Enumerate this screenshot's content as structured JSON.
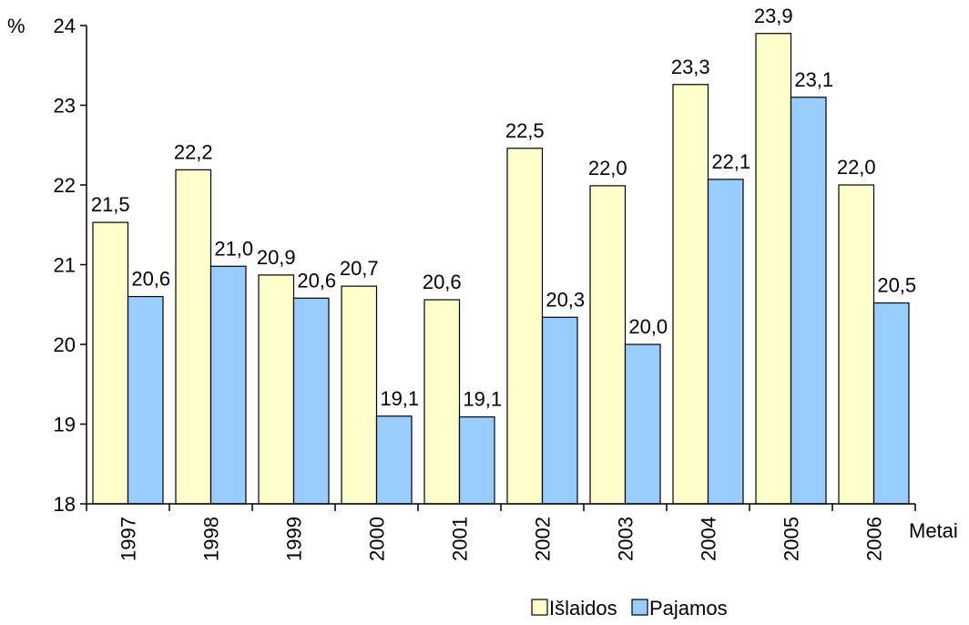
{
  "chart_data": {
    "type": "bar",
    "categories": [
      "1997",
      "1998",
      "1999",
      "2000",
      "2001",
      "2002",
      "2003",
      "2004",
      "2005",
      "2006"
    ],
    "series": [
      {
        "name": "Išlaidos",
        "values": [
          21.53,
          22.19,
          20.87,
          20.73,
          20.56,
          22.46,
          21.99,
          23.26,
          23.9,
          22.0
        ],
        "labels": [
          "21,5",
          "22,2",
          "20,9",
          "20,7",
          "20,6",
          "22,5",
          "22,0",
          "23,3",
          "23,9",
          "22,0"
        ],
        "color": "#FFFFCC"
      },
      {
        "name": "Pajamos",
        "values": [
          20.6,
          20.98,
          20.58,
          19.1,
          19.09,
          20.34,
          20.0,
          22.07,
          23.1,
          20.52
        ],
        "labels": [
          "20,6",
          "21,0",
          "20,6",
          "19,1",
          "19,1",
          "20,3",
          "20,0",
          "22,1",
          "23,1",
          "20,5"
        ],
        "color": "#99CCFF"
      }
    ],
    "ylim": [
      18,
      24
    ],
    "yticks": [
      "18",
      "19",
      "20",
      "21",
      "22",
      "23",
      "24"
    ],
    "yunit": "%",
    "xlabel": "Metai",
    "legend": "bottom",
    "grid": false
  }
}
